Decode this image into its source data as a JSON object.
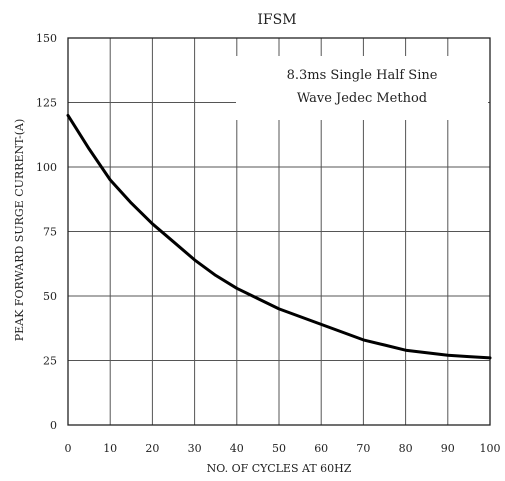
{
  "chart_data": {
    "type": "line",
    "title": "IFSM",
    "xlabel": "NO. OF CYCLES AT 60HZ",
    "ylabel": "PEAK FORWARD SURGE CURRENT-(A)",
    "xlim": [
      0,
      100
    ],
    "ylim": [
      0,
      150
    ],
    "x_ticks": [
      "0",
      "10",
      "20",
      "30",
      "40",
      "50",
      "60",
      "70",
      "80",
      "90",
      "100"
    ],
    "y_ticks": [
      "0",
      "25",
      "50",
      "75",
      "100",
      "125",
      "150"
    ],
    "grid": true,
    "annotation": [
      "8.3ms Single Half Sine",
      "Wave Jedec Method"
    ],
    "series": [
      {
        "x": [
          0,
          5,
          10,
          15,
          20,
          25,
          30,
          35,
          40,
          45,
          50,
          55,
          60,
          65,
          70,
          75,
          80,
          85,
          90,
          95,
          100
        ],
        "y": [
          120,
          107,
          95,
          86,
          78,
          71,
          64,
          58,
          53,
          49,
          45,
          42,
          39,
          36,
          33,
          31,
          29,
          28,
          27,
          26.5,
          26
        ]
      }
    ]
  }
}
